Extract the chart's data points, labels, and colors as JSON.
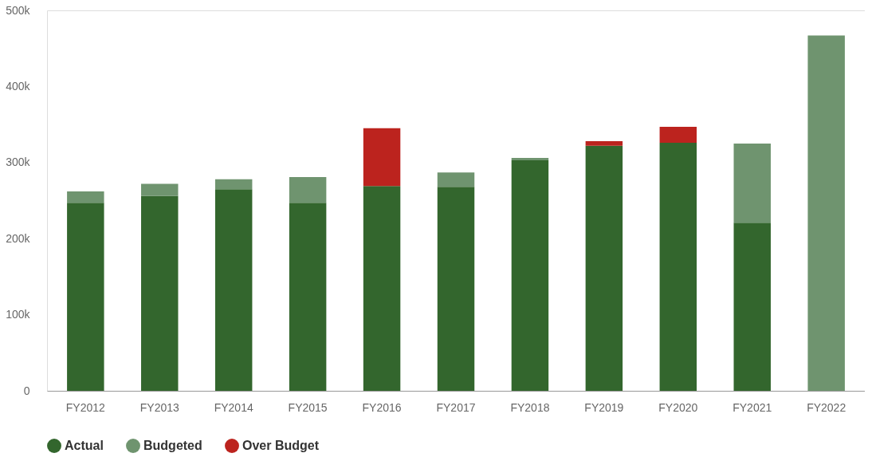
{
  "chart_data": {
    "type": "bar",
    "stacked": true,
    "categories": [
      "FY2012",
      "FY2013",
      "FY2014",
      "FY2015",
      "FY2016",
      "FY2017",
      "FY2018",
      "FY2019",
      "FY2020",
      "FY2021",
      "FY2022"
    ],
    "series": [
      {
        "name": "Actual",
        "color": "#33662d",
        "values": [
          247000,
          256000,
          265000,
          247000,
          269000,
          268000,
          303000,
          322000,
          326000,
          221000,
          null
        ]
      },
      {
        "name": "Budgeted",
        "color": "#6f946f",
        "values": [
          15000,
          16000,
          13000,
          34000,
          null,
          19000,
          3000,
          null,
          null,
          104000,
          467000
        ]
      },
      {
        "name": "Over Budget",
        "color": "#bc231e",
        "values": [
          null,
          null,
          null,
          null,
          76000,
          null,
          null,
          6000,
          21000,
          null,
          null
        ]
      }
    ],
    "ylim": [
      0,
      500000
    ],
    "yticks": [
      0,
      {
        "value": 100000,
        "label": "100k"
      },
      {
        "value": 200000,
        "label": "200k"
      },
      {
        "value": 300000,
        "label": "300k"
      },
      {
        "value": 400000,
        "label": "400k"
      },
      {
        "value": 500000,
        "label": "500k"
      }
    ],
    "legend": "bottom",
    "marker": "circle"
  }
}
